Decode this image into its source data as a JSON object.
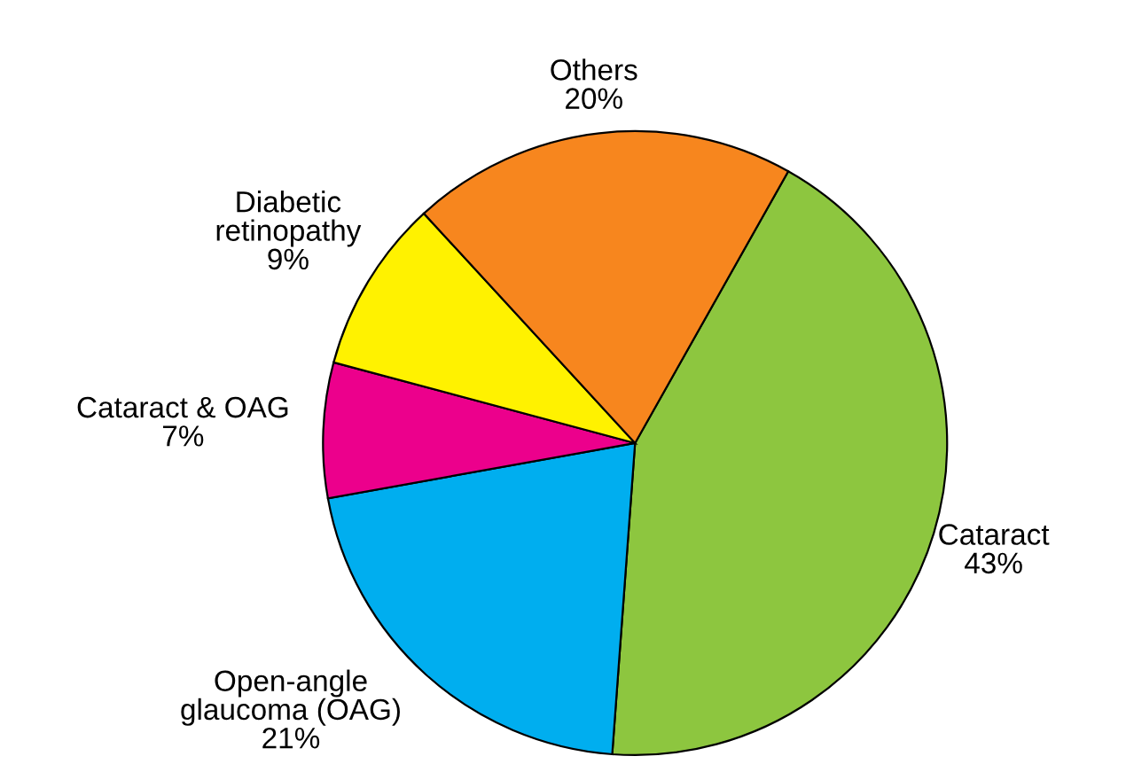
{
  "chart_data": {
    "type": "pie",
    "categories": [
      "Cataract",
      "Open-angle\nglaucoma (OAG)",
      "Cataract & OAG",
      "Diabetic\nretinopathy",
      "Others"
    ],
    "values": [
      43,
      21,
      7,
      9,
      20
    ],
    "value_labels": [
      "43%",
      "21%",
      "7%",
      "9%",
      "20%"
    ],
    "colors": [
      "#8dc63f",
      "#00aeef",
      "#ec008c",
      "#fff200",
      "#f7861e"
    ],
    "legend": false
  }
}
